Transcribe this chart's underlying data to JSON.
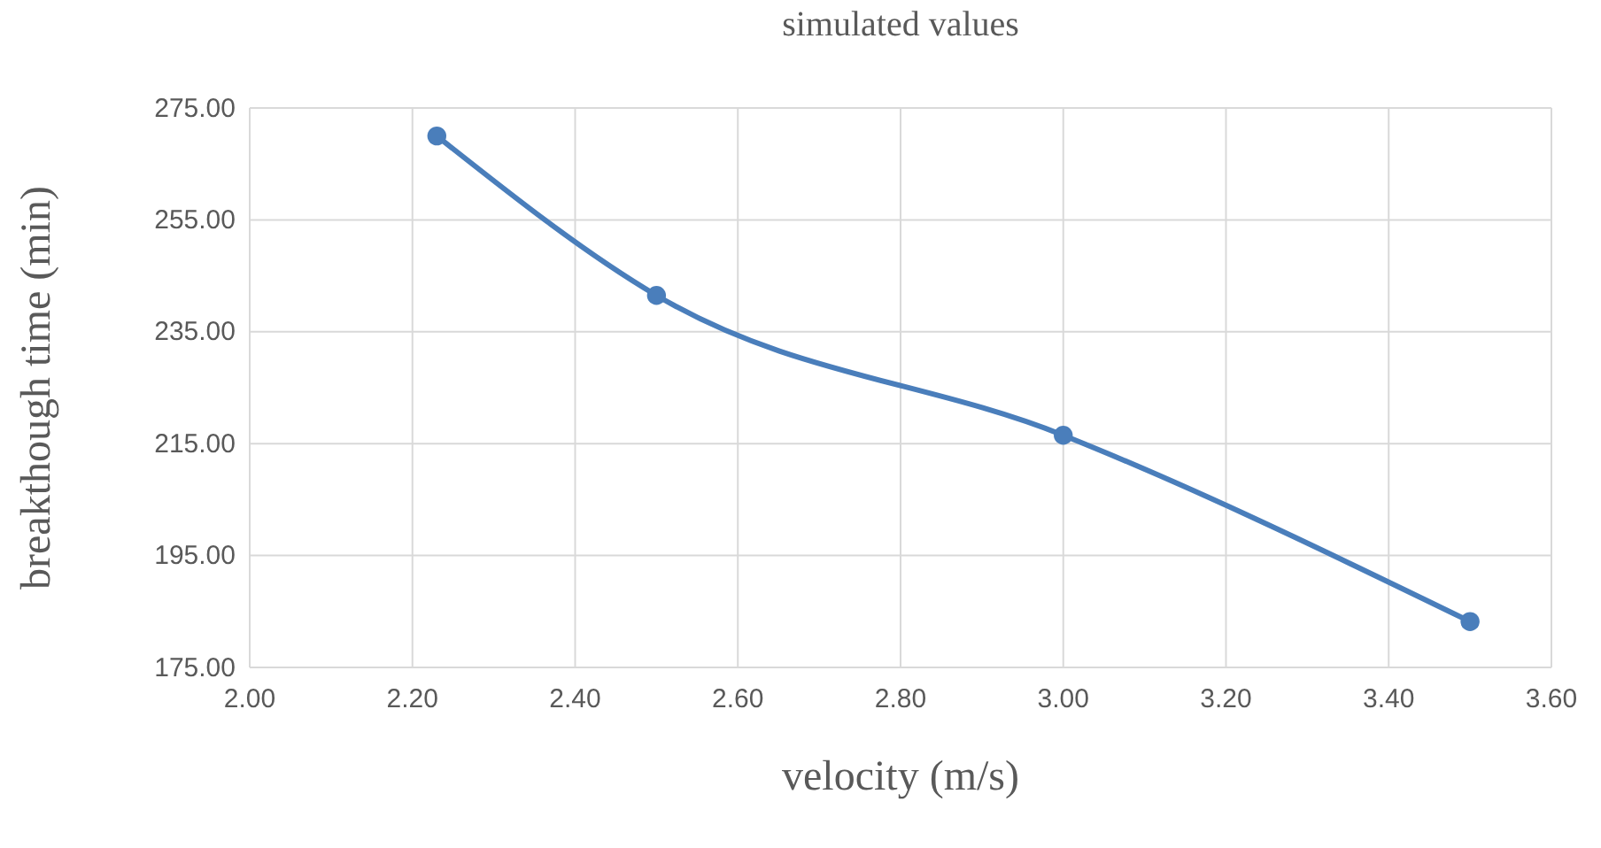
{
  "chart_data": {
    "type": "line",
    "title": "simulated values",
    "xlabel": "velocity (m/s)",
    "ylabel": "breakthough time (min)",
    "x": [
      2.23,
      2.5,
      3.0,
      3.5
    ],
    "series": [
      {
        "color": "#4a7ebb",
        "values": [
          270,
          241.5,
          216.5,
          183.2
        ]
      }
    ],
    "xlim": [
      2.0,
      3.6
    ],
    "xticks": [
      {
        "value": 2.0,
        "label": "2.00"
      },
      {
        "value": 2.2,
        "label": "2.20"
      },
      {
        "value": 2.4,
        "label": "2.40"
      },
      {
        "value": 2.6,
        "label": "2.60"
      },
      {
        "value": 2.8,
        "label": "2.80"
      },
      {
        "value": 3.0,
        "label": "3.00"
      },
      {
        "value": 3.2,
        "label": "3.20"
      },
      {
        "value": 3.4,
        "label": "3.40"
      },
      {
        "value": 3.6,
        "label": "3.60"
      }
    ],
    "ylim": [
      175,
      275
    ],
    "yticks": [
      {
        "value": 175,
        "label": "175.00"
      },
      {
        "value": 195,
        "label": "195.00"
      },
      {
        "value": 215,
        "label": "215.00"
      },
      {
        "value": 235,
        "label": "235.00"
      },
      {
        "value": 255,
        "label": "255.00"
      },
      {
        "value": 275,
        "label": "275.00"
      }
    ],
    "grid": true,
    "marker": "circle",
    "line_style": "solid"
  }
}
